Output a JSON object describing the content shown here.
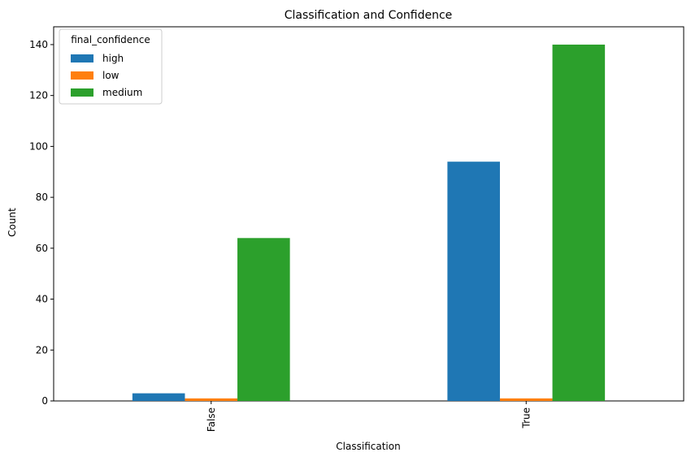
{
  "chart_data": {
    "type": "bar",
    "title": "Classification and Confidence",
    "xlabel": "Classification",
    "ylabel": "Count",
    "categories": [
      "False",
      "True"
    ],
    "series": [
      {
        "name": "high",
        "values": [
          3,
          94
        ],
        "color": "#1f77b4"
      },
      {
        "name": "low",
        "values": [
          1,
          1
        ],
        "color": "#ff7f0e"
      },
      {
        "name": "medium",
        "values": [
          64,
          140
        ],
        "color": "#2ca02c"
      }
    ],
    "ylim": [
      0,
      147
    ],
    "yticks": [
      0,
      20,
      40,
      60,
      80,
      100,
      120,
      140
    ],
    "grid": false,
    "legend": {
      "title": "final_confidence",
      "placement": "top-left"
    }
  }
}
